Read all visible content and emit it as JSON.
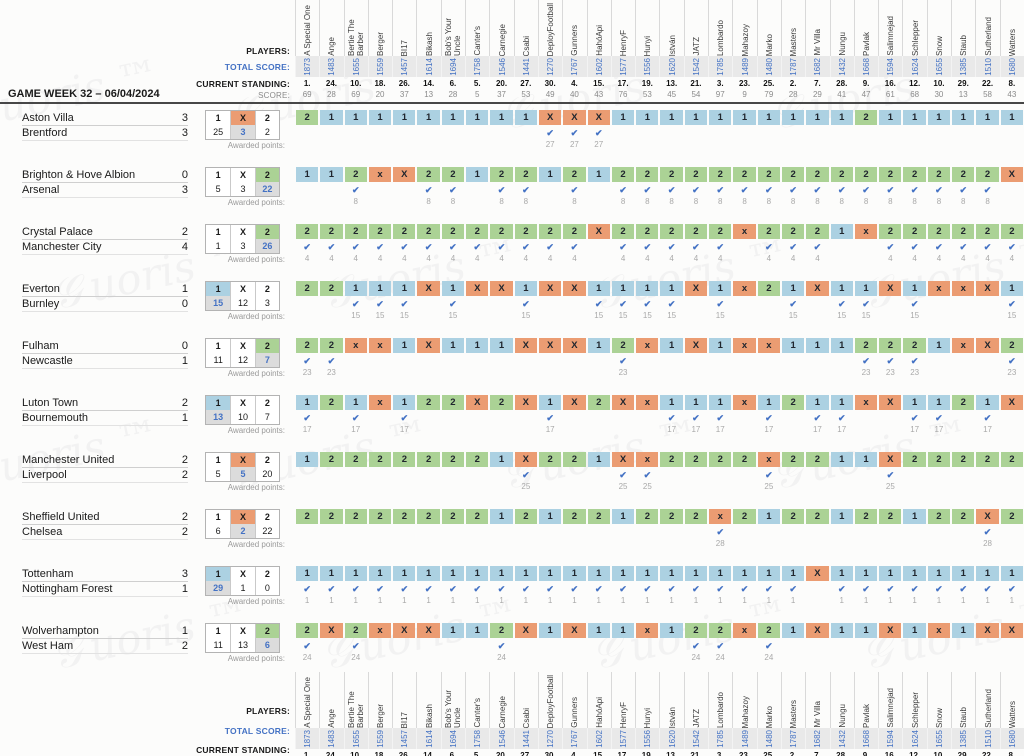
{
  "labels": {
    "players": "PLAYERS:",
    "total_score": "TOTAL SCORE:",
    "current_standing": "CURRENT STANDING:",
    "score": "SCORE:",
    "game_week": "GAME WEEK 32 – 06/04/2024",
    "awarded_points": "Awarded points:"
  },
  "colors": {
    "pick_1": "#acd1e2",
    "pick_X": "#eb9c72",
    "pick_2": "#abd295",
    "accent_blue": "#4472c4",
    "band_gray": "#e9e9e9"
  },
  "players": [
    {
      "name": "A Special One",
      "total": "1873",
      "standing": "1.",
      "score": "69"
    },
    {
      "name": "Ange",
      "total": "1483",
      "standing": "24.",
      "score": "28"
    },
    {
      "name": "Bertie The Barber",
      "total": "1655",
      "standing": "10.",
      "score": "69"
    },
    {
      "name": "Berger",
      "total": "1559",
      "standing": "18.",
      "score": "20"
    },
    {
      "name": "BI17",
      "total": "1457",
      "standing": "26.",
      "score": "37"
    },
    {
      "name": "Bikash",
      "total": "1614",
      "standing": "14.",
      "score": "13"
    },
    {
      "name": "Bob's Your Uncle",
      "total": "1694",
      "standing": "6.",
      "score": "28"
    },
    {
      "name": "Canter's",
      "total": "1758",
      "standing": "5.",
      "score": "5"
    },
    {
      "name": "Carnegie",
      "total": "1546",
      "standing": "20.",
      "score": "37"
    },
    {
      "name": "Csabi",
      "total": "1441",
      "standing": "27.",
      "score": "53"
    },
    {
      "name": "DeployFootball",
      "total": "1270",
      "standing": "30.",
      "score": "49"
    },
    {
      "name": "Gunners",
      "total": "1767",
      "standing": "4.",
      "score": "40"
    },
    {
      "name": "HahóApi",
      "total": "1602",
      "standing": "15.",
      "score": "43"
    },
    {
      "name": "HenryF",
      "total": "1577",
      "standing": "17.",
      "score": "76"
    },
    {
      "name": "Hunyi",
      "total": "1556",
      "standing": "19.",
      "score": "53"
    },
    {
      "name": "István",
      "total": "1620",
      "standing": "13.",
      "score": "45"
    },
    {
      "name": "JATZ",
      "total": "1542",
      "standing": "21.",
      "score": "54"
    },
    {
      "name": "Lombardo",
      "total": "1785",
      "standing": "3.",
      "score": "97"
    },
    {
      "name": "Mahazoy",
      "total": "1489",
      "standing": "23.",
      "score": "9"
    },
    {
      "name": "Marko",
      "total": "1480",
      "standing": "25.",
      "score": "79"
    },
    {
      "name": "Masters",
      "total": "1787",
      "standing": "2.",
      "score": "28"
    },
    {
      "name": "Mr Villa",
      "total": "1682",
      "standing": "7.",
      "score": "29"
    },
    {
      "name": "Nungu",
      "total": "1432",
      "standing": "28.",
      "score": "41"
    },
    {
      "name": "Pavlak",
      "total": "1668",
      "standing": "9.",
      "score": "47"
    },
    {
      "name": "Salimnejad",
      "total": "1594",
      "standing": "16.",
      "score": "61"
    },
    {
      "name": "Schlepper",
      "total": "1624",
      "standing": "12.",
      "score": "68"
    },
    {
      "name": "Snow",
      "total": "1655",
      "standing": "10.",
      "score": "30"
    },
    {
      "name": "Staub",
      "total": "1385",
      "standing": "29.",
      "score": "13"
    },
    {
      "name": "Sutherland",
      "total": "1510",
      "standing": "22.",
      "score": "58"
    },
    {
      "name": "Watters",
      "total": "1680",
      "standing": "8.",
      "score": "43"
    }
  ],
  "outcome_headers": [
    "1",
    "X",
    "2"
  ],
  "matches": [
    {
      "home": "Aston Villa",
      "home_score": "3",
      "away": "Brentford",
      "away_score": "3",
      "outcome": "X",
      "counts": [
        25,
        3,
        2
      ],
      "points": 27,
      "picks": [
        "2",
        "1",
        "1",
        "1",
        "1",
        "1",
        "1",
        "1",
        "1",
        "1",
        "X",
        "X",
        "X",
        "1",
        "1",
        "1",
        "1",
        "1",
        "1",
        "1",
        "1",
        "1",
        "1",
        "2",
        "1",
        "1",
        "1",
        "1",
        "1",
        "1"
      ]
    },
    {
      "home": "Brighton & Hove Albion",
      "home_score": "0",
      "away": "Arsenal",
      "away_score": "3",
      "outcome": "2",
      "counts": [
        5,
        3,
        22
      ],
      "points": 8,
      "picks": [
        "1",
        "1",
        "2",
        "x",
        "X",
        "2",
        "2",
        "1",
        "2",
        "2",
        "1",
        "2",
        "1",
        "2",
        "2",
        "2",
        "2",
        "2",
        "2",
        "2",
        "2",
        "2",
        "2",
        "2",
        "2",
        "2",
        "2",
        "2",
        "2",
        "X"
      ]
    },
    {
      "home": "Crystal Palace",
      "home_score": "2",
      "away": "Manchester City",
      "away_score": "4",
      "outcome": "2",
      "counts": [
        1,
        3,
        26
      ],
      "points": 4,
      "picks": [
        "2",
        "2",
        "2",
        "2",
        "2",
        "2",
        "2",
        "2",
        "2",
        "2",
        "2",
        "2",
        "X",
        "2",
        "2",
        "2",
        "2",
        "2",
        "x",
        "2",
        "2",
        "2",
        "1",
        "x",
        "2",
        "2",
        "2",
        "2",
        "2",
        "2"
      ]
    },
    {
      "home": "Everton",
      "home_score": "1",
      "away": "Burnley",
      "away_score": "0",
      "outcome": "1",
      "counts": [
        15,
        12,
        3
      ],
      "points": 15,
      "picks": [
        "2",
        "2",
        "1",
        "1",
        "1",
        "X",
        "1",
        "X",
        "X",
        "1",
        "X",
        "X",
        "1",
        "1",
        "1",
        "1",
        "X",
        "1",
        "x",
        "2",
        "1",
        "X",
        "1",
        "1",
        "X",
        "1",
        "x",
        "x",
        "X",
        "1"
      ]
    },
    {
      "home": "Fulham",
      "home_score": "0",
      "away": "Newcastle",
      "away_score": "1",
      "outcome": "2",
      "counts": [
        11,
        12,
        7
      ],
      "points": 23,
      "picks": [
        "2",
        "2",
        "x",
        "x",
        "1",
        "X",
        "1",
        "1",
        "1",
        "X",
        "X",
        "X",
        "1",
        "2",
        "x",
        "1",
        "X",
        "1",
        "x",
        "x",
        "1",
        "1",
        "1",
        "2",
        "2",
        "2",
        "1",
        "x",
        "X",
        "2"
      ]
    },
    {
      "home": "Luton Town",
      "home_score": "2",
      "away": "Bournemouth",
      "away_score": "1",
      "outcome": "1",
      "counts": [
        13,
        10,
        7
      ],
      "points": 17,
      "picks": [
        "1",
        "2",
        "1",
        "x",
        "1",
        "2",
        "2",
        "X",
        "2",
        "X",
        "1",
        "X",
        "2",
        "X",
        "x",
        "1",
        "1",
        "1",
        "x",
        "1",
        "2",
        "1",
        "1",
        "x",
        "X",
        "1",
        "1",
        "2",
        "1",
        "X"
      ]
    },
    {
      "home": "Manchester United",
      "home_score": "2",
      "away": "Liverpool",
      "away_score": "2",
      "outcome": "X",
      "counts": [
        5,
        5,
        20
      ],
      "points": 25,
      "picks": [
        "1",
        "2",
        "2",
        "2",
        "2",
        "2",
        "2",
        "2",
        "1",
        "X",
        "2",
        "2",
        "1",
        "X",
        "x",
        "2",
        "2",
        "2",
        "2",
        "x",
        "2",
        "2",
        "1",
        "1",
        "X",
        "2",
        "2",
        "2",
        "2",
        "2"
      ]
    },
    {
      "home": "Sheffield United",
      "home_score": "2",
      "away": "Chelsea",
      "away_score": "2",
      "outcome": "X",
      "counts": [
        6,
        2,
        22
      ],
      "points": 28,
      "picks": [
        "2",
        "2",
        "2",
        "2",
        "2",
        "2",
        "2",
        "2",
        "1",
        "2",
        "1",
        "2",
        "2",
        "1",
        "2",
        "2",
        "2",
        "x",
        "2",
        "1",
        "2",
        "2",
        "1",
        "2",
        "2",
        "1",
        "2",
        "2",
        "X",
        "2"
      ]
    },
    {
      "home": "Tottenham",
      "home_score": "3",
      "away": "Nottingham Forest",
      "away_score": "1",
      "outcome": "1",
      "counts": [
        29,
        1,
        0
      ],
      "points": 1,
      "picks": [
        "1",
        "1",
        "1",
        "1",
        "1",
        "1",
        "1",
        "1",
        "1",
        "1",
        "1",
        "1",
        "1",
        "1",
        "1",
        "1",
        "1",
        "1",
        "1",
        "1",
        "1",
        "X",
        "1",
        "1",
        "1",
        "1",
        "1",
        "1",
        "1",
        "1"
      ]
    },
    {
      "home": "Wolverhampton",
      "home_score": "1",
      "away": "West Ham",
      "away_score": "2",
      "outcome": "2",
      "counts": [
        11,
        13,
        6
      ],
      "points": 24,
      "picks": [
        "2",
        "X",
        "2",
        "x",
        "X",
        "X",
        "1",
        "1",
        "2",
        "X",
        "1",
        "X",
        "1",
        "1",
        "x",
        "1",
        "2",
        "2",
        "x",
        "2",
        "1",
        "X",
        "1",
        "1",
        "X",
        "1",
        "x",
        "1",
        "X",
        "X"
      ]
    }
  ]
}
